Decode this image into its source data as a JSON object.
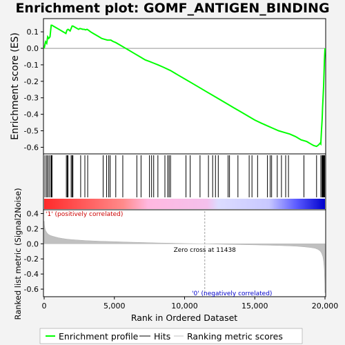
{
  "chart_data": {
    "type": "line",
    "title": "Enrichment plot: GOMF_ANTIGEN_BINDING",
    "colors": {
      "es_line": "#00ff00",
      "hits": "#000000",
      "metric_fill": "#c0c0c0",
      "positive_label": "#cc0000",
      "negative_label": "#0000cc",
      "zero_cross_line": "#a0a0a0",
      "background": "#f3f3f3",
      "panel": "#ffffff"
    },
    "top_panel": {
      "ylabel": "Enrichment score (ES)",
      "ylim": [
        -0.64,
        0.18
      ],
      "yticks": [
        0.1,
        0.0,
        -0.1,
        -0.2,
        -0.3,
        -0.4,
        -0.5,
        -0.6
      ],
      "ytick_labels": [
        "0.1",
        "0.0",
        "-0.1",
        "-0.2",
        "-0.3",
        "-0.4",
        "-0.5",
        "-0.6"
      ],
      "grid": false,
      "es_curve": {
        "x": [
          0,
          100,
          180,
          250,
          330,
          420,
          500,
          560,
          650,
          750,
          850,
          950,
          1050,
          1150,
          1250,
          1350,
          1450,
          1550,
          1620,
          1700,
          1780,
          1850,
          1920,
          1990,
          2050,
          2150,
          2250,
          2350,
          2450,
          2550,
          2650,
          2750,
          2850,
          2950,
          3050,
          3150,
          3300,
          3500,
          3700,
          3900,
          4100,
          4300,
          4500,
          4650,
          4750,
          4900,
          5100,
          5400,
          5700,
          6000,
          6400,
          6800,
          7200,
          7500,
          7800,
          8100,
          8500,
          9000,
          9500,
          10000,
          10500,
          11000,
          11500,
          12000,
          12500,
          13000,
          13500,
          14000,
          14500,
          15000,
          15500,
          15900,
          16300,
          16700,
          17100,
          17500,
          17900,
          18300,
          18700,
          19000,
          19200,
          19400,
          19550,
          19650,
          19700,
          19750,
          19800,
          19830,
          19860,
          19900,
          19930,
          19960,
          20000
        ],
        "y": [
          0.0,
          0.04,
          0.03,
          0.07,
          0.06,
          0.07,
          0.14,
          0.14,
          0.135,
          0.13,
          0.125,
          0.12,
          0.115,
          0.11,
          0.105,
          0.1,
          0.095,
          0.09,
          0.11,
          0.115,
          0.11,
          0.105,
          0.12,
          0.135,
          0.135,
          0.13,
          0.125,
          0.12,
          0.115,
          0.12,
          0.118,
          0.115,
          0.115,
          0.112,
          0.115,
          0.11,
          0.1,
          0.09,
          0.08,
          0.07,
          0.06,
          0.055,
          0.05,
          0.05,
          0.05,
          0.042,
          0.035,
          0.02,
          0.005,
          -0.01,
          -0.03,
          -0.05,
          -0.07,
          -0.08,
          -0.09,
          -0.1,
          -0.115,
          -0.135,
          -0.16,
          -0.185,
          -0.21,
          -0.235,
          -0.26,
          -0.285,
          -0.31,
          -0.335,
          -0.36,
          -0.385,
          -0.41,
          -0.435,
          -0.455,
          -0.47,
          -0.485,
          -0.5,
          -0.51,
          -0.52,
          -0.535,
          -0.555,
          -0.565,
          -0.58,
          -0.59,
          -0.595,
          -0.585,
          -0.575,
          -0.58,
          -0.5,
          -0.43,
          -0.36,
          -0.3,
          -0.23,
          -0.15,
          -0.07,
          0.0
        ]
      }
    },
    "hits_panel": {
      "positions": [
        60,
        180,
        260,
        360,
        480,
        520,
        560,
        1580,
        1650,
        1700,
        1920,
        1990,
        2050,
        2600,
        2900,
        3100,
        4200,
        4450,
        4600,
        4700,
        5100,
        5600,
        6600,
        6900,
        7500,
        7650,
        7800,
        8100,
        8600,
        8800,
        8900,
        9000,
        10100,
        10400,
        11100,
        11700,
        12000,
        12200,
        12400,
        13100,
        13200,
        13800,
        14600,
        14800,
        15200,
        15900,
        16100,
        16200,
        16600,
        16900,
        17200,
        17400,
        18500,
        19400,
        19700,
        19780,
        19820,
        19860,
        19900,
        19940,
        19980
      ]
    },
    "rank_bar": {
      "left_color": "#ff0000",
      "mid_left_color": "#ffb0d0",
      "mid_right_color": "#d0d0ff",
      "right_color": "#0000ff"
    },
    "bottom_panel": {
      "ylabel": "Ranked list metric (Signal2Noise)",
      "xlabel": "Rank in Ordered Dataset",
      "ylim": [
        -0.7,
        0.45
      ],
      "yticks": [
        0.4,
        0.2,
        0.0,
        -0.2,
        -0.4,
        -0.6
      ],
      "ytick_labels": [
        "0.4",
        "0.2",
        "0.0",
        "-0.2",
        "-0.4",
        "-0.6"
      ],
      "xlim": [
        0,
        20000
      ],
      "xticks": [
        0,
        5000,
        10000,
        15000,
        20000
      ],
      "xtick_labels": [
        "0",
        "5,000",
        "10,000",
        "15,000",
        "20,000"
      ],
      "zero_cross": 11438,
      "zero_cross_label": "Zero cross at 11438",
      "positive_label": "'1' (positively correlated)",
      "negative_label": "'0' (negatively correlated)",
      "metric_curve": {
        "x": [
          0,
          20,
          60,
          120,
          200,
          300,
          450,
          600,
          800,
          1000,
          1300,
          1600,
          2000,
          2500,
          3000,
          4000,
          5000,
          6000,
          7000,
          8000,
          9000,
          10000,
          11000,
          11438,
          12000,
          13000,
          14000,
          15000,
          16000,
          17000,
          17500,
          18000,
          18500,
          19000,
          19300,
          19500,
          19650,
          19750,
          19850,
          19900,
          19950,
          19980,
          20000
        ],
        "y": [
          0.3,
          0.25,
          0.2,
          0.17,
          0.145,
          0.125,
          0.11,
          0.1,
          0.09,
          0.08,
          0.07,
          0.062,
          0.055,
          0.048,
          0.042,
          0.034,
          0.028,
          0.022,
          0.017,
          0.012,
          0.008,
          0.004,
          0.001,
          0.0,
          -0.003,
          -0.007,
          -0.011,
          -0.015,
          -0.019,
          -0.025,
          -0.028,
          -0.033,
          -0.04,
          -0.05,
          -0.06,
          -0.075,
          -0.095,
          -0.12,
          -0.17,
          -0.23,
          -0.33,
          -0.5,
          -0.65
        ]
      }
    },
    "legend": {
      "entries": [
        {
          "label": "Enrichment profile",
          "style": "line",
          "color": "#00ff00"
        },
        {
          "label": "Hits",
          "style": "line",
          "color": "#000000"
        },
        {
          "label": "Ranking metric scores",
          "style": "line",
          "color": "#c0c0c0"
        }
      ]
    }
  }
}
